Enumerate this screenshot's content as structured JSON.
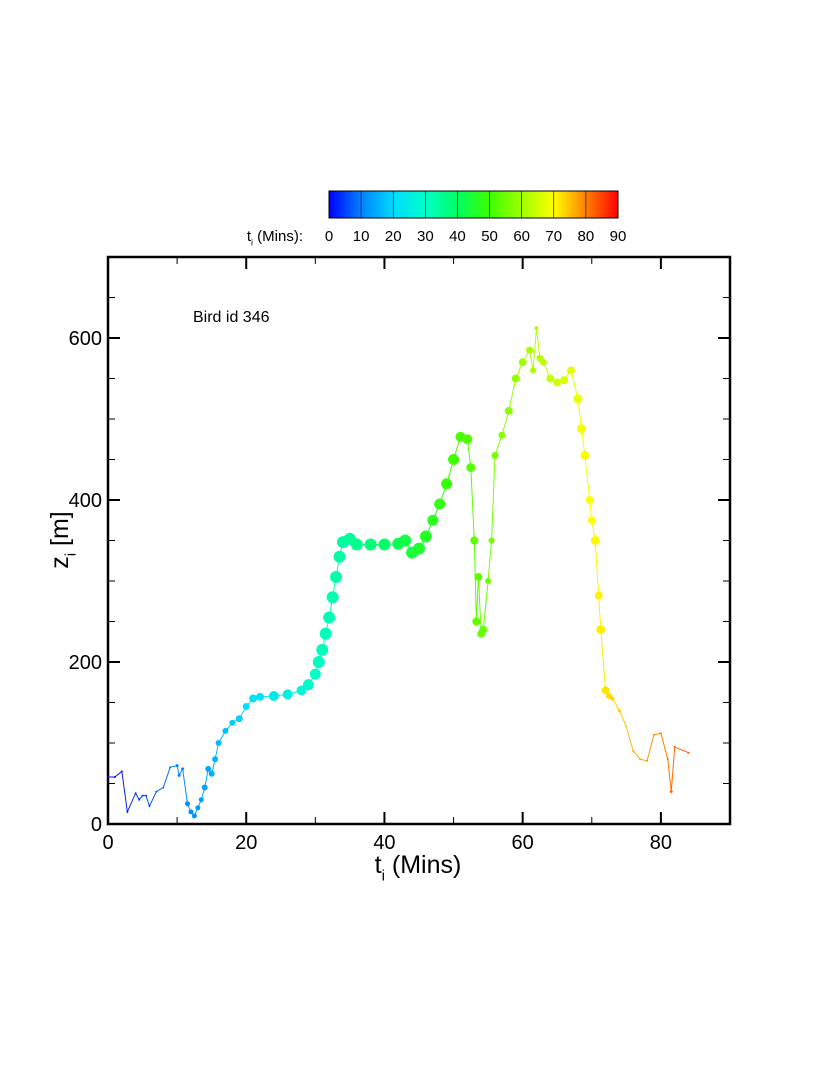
{
  "chart_data": {
    "type": "scatter",
    "annotation": "Bird id 346",
    "x_label": {
      "main": "t",
      "sub": "i",
      "rest": " (Mins)"
    },
    "y_label": {
      "main": "z",
      "sub": "i",
      "rest": " [m]"
    },
    "colorbar": {
      "label": {
        "main": "t",
        "sub": "i",
        "rest": " (Mins):"
      },
      "clim": [
        0,
        90
      ],
      "ticks": [
        0,
        10,
        20,
        30,
        40,
        50,
        60,
        70,
        80,
        90
      ],
      "colormap": [
        "#0000ff",
        "#0080ff",
        "#00dcff",
        "#00ffc8",
        "#00ff64",
        "#3cff00",
        "#a0ff00",
        "#ffff00",
        "#ff8000",
        "#ff0000"
      ]
    },
    "xlim": [
      0,
      90
    ],
    "xticks": [
      0,
      20,
      40,
      60,
      80
    ],
    "xminorticks": [
      10,
      30,
      50,
      70,
      90
    ],
    "ylim": [
      0,
      700
    ],
    "yticks": [
      0,
      200,
      400,
      600
    ],
    "yminorticks": [
      50,
      100,
      150,
      250,
      300,
      350,
      450,
      500,
      550,
      650
    ],
    "series": [
      {
        "x": [
          0,
          1,
          2,
          2.8,
          4,
          4.5,
          5,
          5.5,
          6,
          7,
          8,
          9,
          10,
          10.3,
          10.8,
          11.5,
          12,
          12.5,
          13,
          13.5,
          14,
          14.5,
          15,
          15.5,
          16,
          17,
          18,
          19,
          20,
          21,
          22,
          24,
          26,
          28,
          29,
          30,
          30.5,
          31,
          31.5,
          32,
          32.5,
          33,
          33.5,
          34,
          35,
          36,
          38,
          40,
          42,
          43,
          44,
          45,
          46,
          47,
          48,
          49,
          50,
          51,
          52,
          52.5,
          53,
          53.3,
          53.6,
          54,
          54.3,
          55,
          55.5,
          56,
          57,
          58,
          59,
          60,
          61,
          61.5,
          62,
          62.5,
          63,
          64,
          65,
          66,
          67,
          68,
          68.5,
          69,
          69.7,
          70,
          70.5,
          71,
          71.3,
          72,
          72.5,
          73,
          74,
          75,
          76,
          77,
          78,
          79,
          80,
          81,
          81.5,
          82,
          84
        ],
        "values": [
          58,
          58,
          65,
          15,
          38,
          30,
          35,
          35,
          22,
          40,
          45,
          70,
          72,
          60,
          68,
          25,
          15,
          10,
          20,
          30,
          45,
          68,
          62,
          80,
          100,
          115,
          125,
          130,
          145,
          155,
          157,
          158,
          160,
          165,
          172,
          185,
          200,
          215,
          235,
          255,
          280,
          305,
          330,
          348,
          352,
          345,
          345,
          345,
          346,
          350,
          335,
          340,
          355,
          375,
          395,
          420,
          450,
          478,
          475,
          440,
          350,
          250,
          305,
          235,
          240,
          300,
          350,
          455,
          480,
          510,
          550,
          570,
          585,
          560,
          612,
          575,
          570,
          550,
          545,
          548,
          560,
          525,
          488,
          455,
          400,
          375,
          350,
          282,
          240,
          165,
          158,
          155,
          140,
          120,
          90,
          80,
          78,
          110,
          112,
          80,
          40,
          95,
          88
        ],
        "sizes": [
          1,
          1,
          1,
          1,
          1,
          1,
          1,
          1,
          1,
          1,
          1,
          1,
          1.5,
          1.5,
          1.5,
          2.5,
          2.5,
          2.5,
          2.5,
          2.5,
          3,
          3,
          3,
          3,
          3,
          3,
          3,
          3.5,
          3.5,
          4,
          4,
          5,
          5,
          5,
          5.5,
          5.5,
          6,
          6,
          6,
          6,
          6,
          6,
          6,
          6,
          6,
          6,
          6,
          6,
          6,
          6,
          6,
          6,
          6,
          5.5,
          5.5,
          5.5,
          5.5,
          5,
          5,
          4.5,
          4,
          4,
          4,
          4,
          4,
          3,
          3,
          3.5,
          3.5,
          4,
          4,
          4,
          3.5,
          3,
          2,
          3.5,
          3.5,
          4,
          4,
          4,
          4,
          4.5,
          4.5,
          4.5,
          4,
          4,
          4.5,
          4,
          4.5,
          4,
          3,
          2,
          1.5,
          1,
          1,
          1,
          1,
          1,
          1,
          1,
          1.5,
          1,
          1
        ]
      }
    ]
  }
}
